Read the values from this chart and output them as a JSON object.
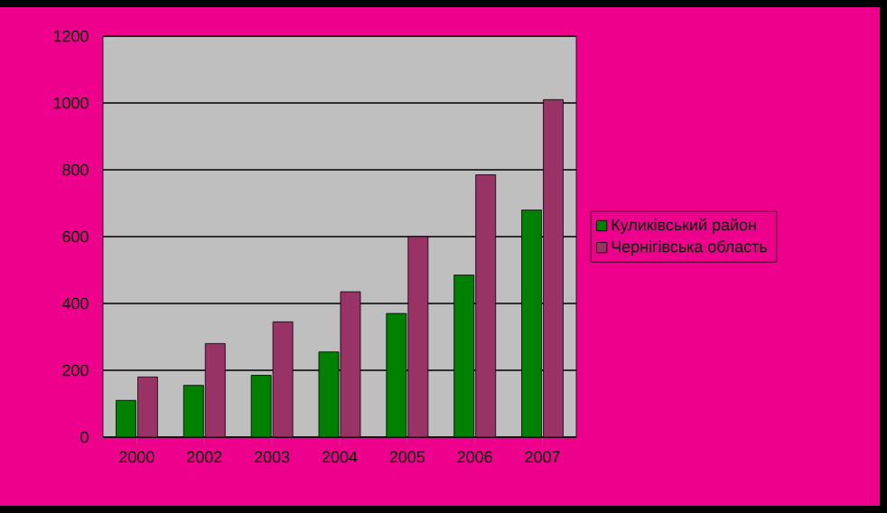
{
  "chart_data": {
    "type": "bar",
    "categories": [
      "2000",
      "2002",
      "2003",
      "2004",
      "2005",
      "2006",
      "2007"
    ],
    "series": [
      {
        "name": "Куликівський район",
        "color": "#008000",
        "values": [
          110,
          155,
          185,
          255,
          370,
          485,
          680
        ]
      },
      {
        "name": "Чернігівська область",
        "color": "#993366",
        "values": [
          180,
          280,
          345,
          435,
          600,
          785,
          1010
        ]
      }
    ],
    "ylim": [
      0,
      1200
    ],
    "yticks": [
      0,
      200,
      400,
      600,
      800,
      1000,
      1200
    ],
    "grid": "y",
    "legend": "right"
  }
}
